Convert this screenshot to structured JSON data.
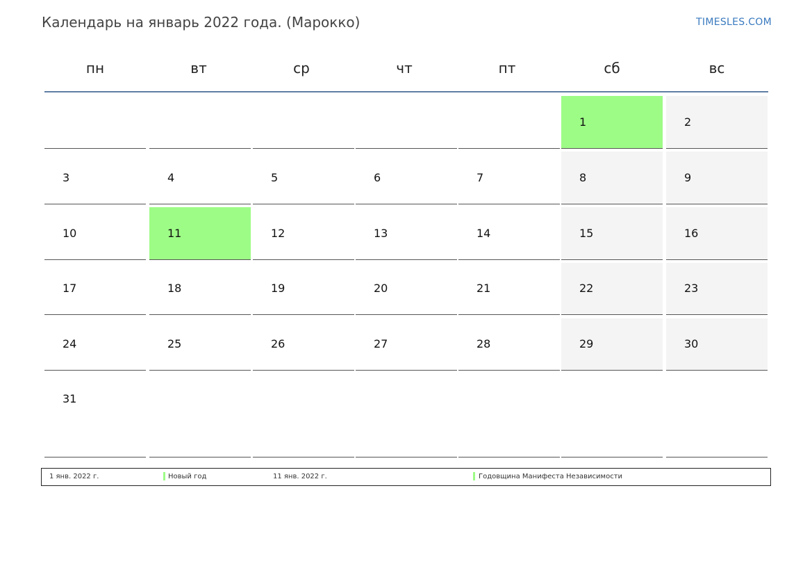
{
  "header": {
    "title": "Календарь на январь 2022 года. (Марокко)",
    "brand": "TIMESLES.COM"
  },
  "colors": {
    "holiday": "#9dfc86",
    "weekend": "#f4f4f4",
    "header_line": "#5e7ea4",
    "brand": "#3a7abf"
  },
  "weekdays": [
    "пн",
    "вт",
    "ср",
    "чт",
    "пт",
    "сб",
    "вс"
  ],
  "weeks": [
    [
      "",
      "",
      "",
      "",
      "",
      "1",
      "2"
    ],
    [
      "3",
      "4",
      "5",
      "6",
      "7",
      "8",
      "9"
    ],
    [
      "10",
      "11",
      "12",
      "13",
      "14",
      "15",
      "16"
    ],
    [
      "17",
      "18",
      "19",
      "20",
      "21",
      "22",
      "23"
    ],
    [
      "24",
      "25",
      "26",
      "27",
      "28",
      "29",
      "30"
    ],
    [
      "31",
      "",
      "",
      "",
      "",
      "",
      ""
    ]
  ],
  "holiday_days": [
    "1",
    "11"
  ],
  "legend": [
    {
      "date": "1 янв. 2022 г.",
      "name": "Новый год"
    },
    {
      "date": "11 янв. 2022 г.",
      "name": "Годовщина Манифеста Независимости"
    }
  ]
}
